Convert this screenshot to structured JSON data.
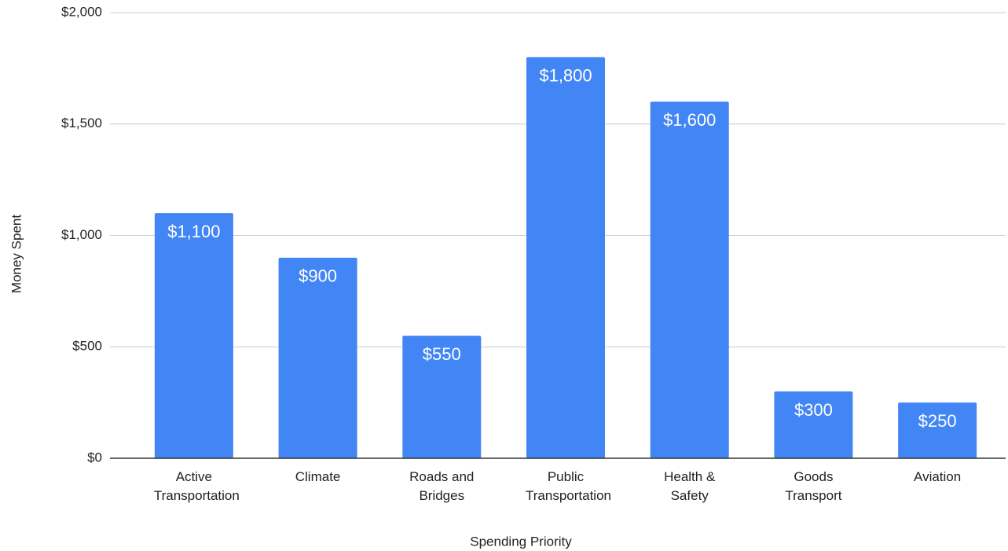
{
  "chart_data": {
    "type": "bar",
    "x_label": "Spending Priority",
    "y_label": "Money Spent",
    "categories": [
      "Active Transportation",
      "Climate",
      "Roads and Bridges",
      "Public Transportation",
      "Health & Safety",
      "Goods Transport",
      "Aviation"
    ],
    "values": [
      1100,
      900,
      550,
      1800,
      1600,
      300,
      250
    ],
    "value_labels": [
      "$1,100",
      "$900",
      "$550",
      "$1,800",
      "$1,600",
      "$300",
      "$250"
    ],
    "color": "#4285f4",
    "ylim": [
      0,
      2000
    ],
    "yticks": [
      {
        "value": 0,
        "label": "$0"
      },
      {
        "value": 500,
        "label": "$500"
      },
      {
        "value": 1000,
        "label": "$1,000"
      },
      {
        "value": 1500,
        "label": "$1,500"
      },
      {
        "value": 2000,
        "label": "$2,000"
      }
    ],
    "grid": true
  }
}
